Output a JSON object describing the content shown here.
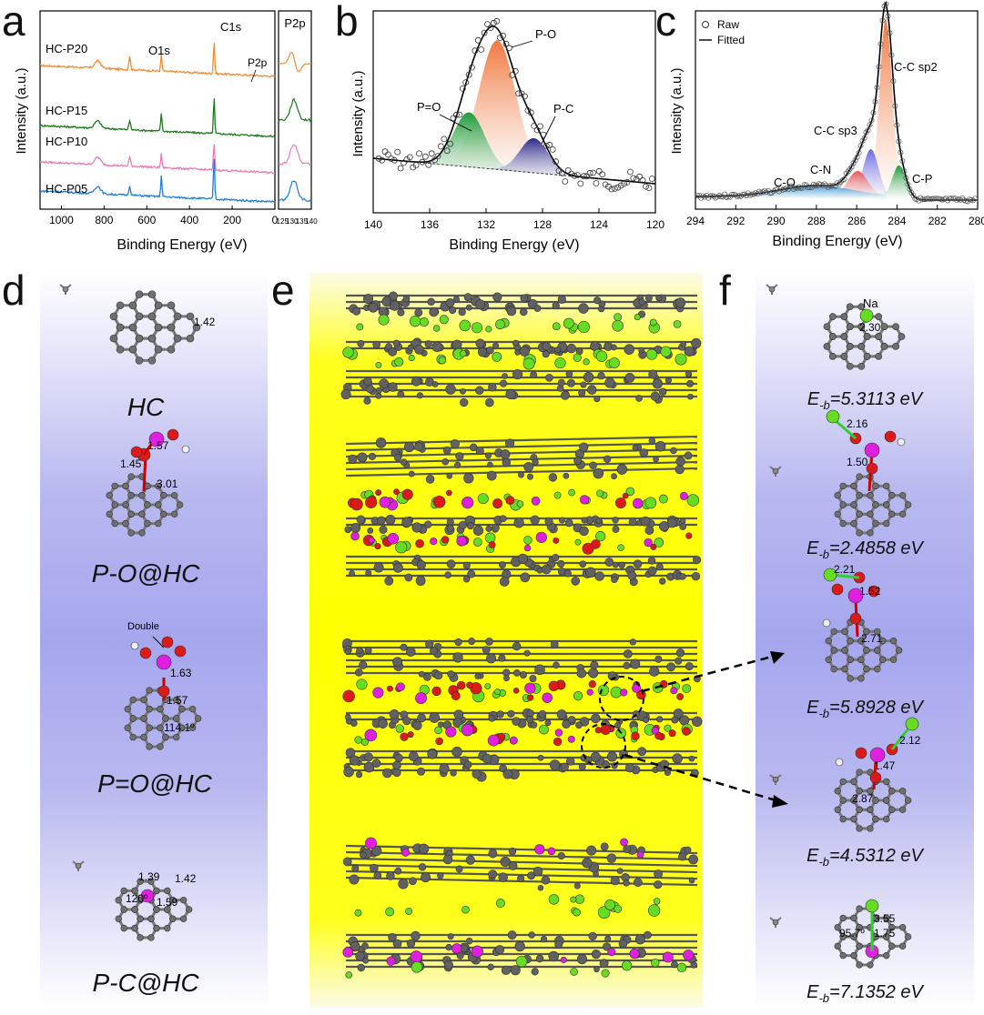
{
  "panels": {
    "a": "a",
    "b": "b",
    "c": "c",
    "d": "d",
    "e": "e",
    "f": "f"
  },
  "chart_data": [
    {
      "type": "line",
      "panel": "a",
      "xlabel": "Binding Energy (eV)",
      "ylabel": "Intensity (a.u.)",
      "xlim": [
        1100,
        0
      ],
      "xticks": [
        "1000",
        "800",
        "600",
        "400",
        "200",
        "0"
      ],
      "series": [
        {
          "name": "HC-P20",
          "color": "#f28a30"
        },
        {
          "name": "HC-P15",
          "color": "#1a7a1a"
        },
        {
          "name": "HC-P10",
          "color": "#e879b8"
        },
        {
          "name": "HC-P05",
          "color": "#1e7fd8"
        }
      ],
      "peaks": [
        {
          "label": "C1s",
          "x": 285
        },
        {
          "label": "O1s",
          "x": 532
        },
        {
          "label": "P2p",
          "x": 133
        }
      ],
      "inset": {
        "title": "P2p",
        "xticks": [
          "125",
          "130",
          "135",
          "140"
        ]
      }
    },
    {
      "type": "scatter",
      "panel": "b",
      "xlabel": "Binding Energy (eV)",
      "ylabel": "Intensity (a.u.)",
      "xlim": [
        140,
        120
      ],
      "xticks": [
        "140",
        "136",
        "132",
        "128",
        "124",
        "120"
      ],
      "components": [
        {
          "label": "P-O",
          "center": 131.2,
          "color": "#f07840"
        },
        {
          "label": "P=O",
          "center": 133.2,
          "color": "#1e9a3a"
        },
        {
          "label": "P-C",
          "center": 128.6,
          "color": "#2a2a8a"
        }
      ]
    },
    {
      "type": "scatter",
      "panel": "c",
      "xlabel": "Binding Energy (eV)",
      "ylabel": "Intensity (a.u.)",
      "xlim": [
        294,
        280
      ],
      "xticks": [
        "294",
        "292",
        "290",
        "288",
        "286",
        "284",
        "282",
        "280"
      ],
      "legend": [
        "Raw",
        "Fitted"
      ],
      "components": [
        {
          "label": "C-C sp2",
          "center": 284.6,
          "color": "#f07840"
        },
        {
          "label": "C-C sp3",
          "center": 285.3,
          "color": "#6a6ae0"
        },
        {
          "label": "C-N",
          "center": 286.0,
          "color": "#e05a5a"
        },
        {
          "label": "C-O",
          "center": 288.0,
          "color": "#3a9ad8"
        },
        {
          "label": "C-P",
          "center": 283.9,
          "color": "#1e9a3a"
        }
      ]
    }
  ],
  "structures_d": [
    {
      "name": "HC",
      "bonds": [
        "1.42"
      ]
    },
    {
      "name": "P-O@HC",
      "bonds": [
        "1.57",
        "1.45",
        "3.01"
      ]
    },
    {
      "name": "P=O@HC",
      "bonds": [
        "1.63",
        "1.57",
        "114.1º"
      ],
      "note": "Double"
    },
    {
      "name": "P-C@HC",
      "bonds": [
        "1.39",
        "1.42",
        "120º",
        "1.59"
      ]
    }
  ],
  "structures_f": [
    {
      "eb": "5.3113 eV",
      "bonds": [
        "2.30"
      ],
      "atom": "Na"
    },
    {
      "eb": "2.4858 eV",
      "bonds": [
        "2.16",
        "1.50"
      ]
    },
    {
      "eb": "5.8928 eV",
      "bonds": [
        "2.21",
        "1.52",
        "2.71"
      ]
    },
    {
      "eb": "4.5312 eV",
      "bonds": [
        "2.12",
        "1.47",
        "2.87"
      ]
    },
    {
      "eb": "7.1352 eV",
      "bonds": [
        "3.55",
        "95.7º",
        "1.75"
      ]
    }
  ],
  "eb_prefix": "E",
  "eb_sub": "-b",
  "eb_eq": "="
}
